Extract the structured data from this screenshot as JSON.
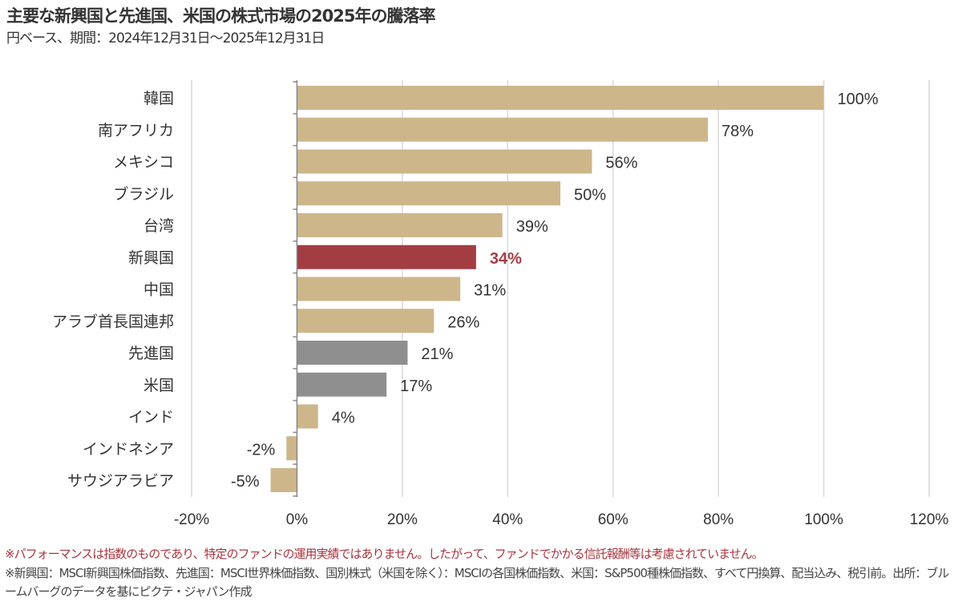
{
  "title": "主要な新興国と先進国、米国の株式市場の2025年の騰落率",
  "subtitle": "円ベース、期間：2024年12月31日～2025年12月31日",
  "notes": [
    "※パフォーマンスは指数のものであり、特定のファンドの運用実績ではありません。したがって、ファンドでかかる信託報酬等は考慮されていません。",
    "※新興国：MSCI新興国株価指数、先進国：MSCI世界株価指数、国別株式（米国を除く）：MSCIの各国株価指数、米国：S&P500種株価指数、すべて円換算、配当込み、税引前。出所：ブルームバーグのデータを基にピクテ・ジャパン作成"
  ],
  "colors": {
    "default": "#CDB68A",
    "highlight": "#A33D44",
    "developed": "#8F8F8F",
    "highlight_label": "#A33D44"
  },
  "chart_data": {
    "type": "bar",
    "orientation": "horizontal",
    "categories": [
      "韓国",
      "南アフリカ",
      "メキシコ",
      "ブラジル",
      "台湾",
      "新興国",
      "中国",
      "アラブ首長国連邦",
      "先進国",
      "米国",
      "インド",
      "インドネシア",
      "サウジアラビア"
    ],
    "values": [
      100,
      78,
      56,
      50,
      39,
      34,
      31,
      26,
      21,
      17,
      4,
      -2,
      -5
    ],
    "data_labels": [
      "100%",
      "78%",
      "56%",
      "50%",
      "39%",
      "34%",
      "31%",
      "26%",
      "21%",
      "17%",
      "4%",
      "-2%",
      "-5%"
    ],
    "bar_colors": [
      "default",
      "default",
      "default",
      "default",
      "default",
      "highlight",
      "default",
      "default",
      "developed",
      "developed",
      "default",
      "default",
      "default"
    ],
    "xlim": [
      -20,
      120
    ],
    "xticks": [
      -20,
      0,
      20,
      40,
      60,
      80,
      100,
      120
    ],
    "xtick_labels": [
      "-20%",
      "0%",
      "20%",
      "40%",
      "60%",
      "80%",
      "100%",
      "120%"
    ],
    "grid": "vertical",
    "xlabel": "",
    "ylabel": "",
    "title": ""
  }
}
